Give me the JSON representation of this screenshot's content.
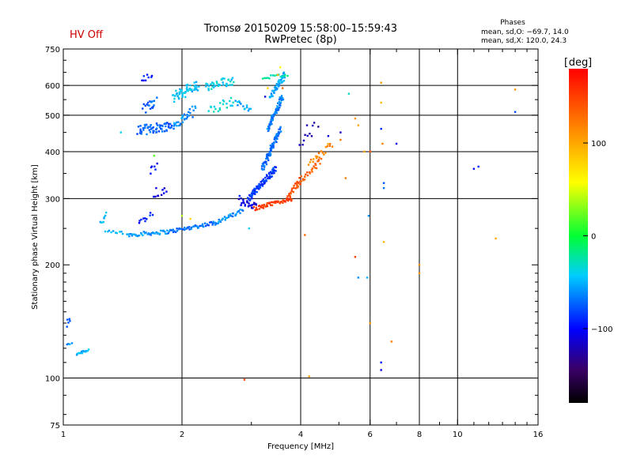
{
  "status": {
    "hv_text": "HV Off",
    "hv_color": "#cc0000"
  },
  "chart_data": {
    "type": "scatter",
    "title": "Tromsø 20150209 15:58:00–15:59:43",
    "subtitle": "RwPretec (8p)",
    "xlabel": "Frequency [MHz]",
    "ylabel": "Stationary phase Virtual Height [km]",
    "x_scale": "log",
    "y_scale": "log",
    "xlim": [
      1,
      16
    ],
    "ylim": [
      75,
      750
    ],
    "x_ticks": [
      1,
      2,
      4,
      6,
      8,
      10,
      16
    ],
    "x_grid": [
      2,
      4,
      6,
      8,
      10
    ],
    "y_ticks": [
      75,
      100,
      200,
      300,
      400,
      500,
      600,
      750
    ],
    "y_grid": [
      100,
      300,
      400,
      500,
      600
    ],
    "grid": true,
    "phase_box": {
      "title": "Phases",
      "line1": "mean, sd,O: −69.7, 14.0",
      "line2": "mean, sd,X: 120.0, 24.3"
    },
    "colorbar": {
      "unit_label": "deg",
      "range": [
        -180,
        180
      ],
      "ticks": [
        100,
        0,
        -100
      ],
      "tick_labels": [
        "100",
        "0",
        "−100"
      ]
    },
    "segments": [
      {
        "x0": 1.02,
        "x1": 1.04,
        "y0": 138,
        "y1": 145,
        "n": 6,
        "phase": -80,
        "spread": 0.02
      },
      {
        "x0": 1.02,
        "x1": 1.05,
        "y0": 122,
        "y1": 124,
        "n": 4,
        "phase": -60,
        "spread": 0.01
      },
      {
        "x0": 1.08,
        "x1": 1.16,
        "y0": 116,
        "y1": 119,
        "n": 14,
        "phase": -50,
        "spread": 0.01
      },
      {
        "x0": 1.24,
        "x1": 1.28,
        "y0": 258,
        "y1": 270,
        "n": 8,
        "phase": -45,
        "spread": 0.02
      },
      {
        "x0": 1.28,
        "x1": 1.42,
        "y0": 245,
        "y1": 243,
        "n": 10,
        "phase": -50,
        "spread": 0.01
      },
      {
        "x0": 1.45,
        "x1": 1.85,
        "y0": 240,
        "y1": 245,
        "n": 40,
        "phase": -60,
        "spread": 0.012
      },
      {
        "x0": 1.85,
        "x1": 2.4,
        "y0": 245,
        "y1": 258,
        "n": 45,
        "phase": -70,
        "spread": 0.012
      },
      {
        "x0": 2.4,
        "x1": 2.85,
        "y0": 258,
        "y1": 278,
        "n": 35,
        "phase": -60,
        "spread": 0.014
      },
      {
        "x0": 1.55,
        "x1": 1.68,
        "y0": 262,
        "y1": 272,
        "n": 10,
        "phase": -90,
        "spread": 0.02
      },
      {
        "x0": 1.7,
        "x1": 1.82,
        "y0": 300,
        "y1": 318,
        "n": 8,
        "phase": -110,
        "spread": 0.02
      },
      {
        "x0": 1.66,
        "x1": 1.72,
        "y0": 355,
        "y1": 368,
        "n": 6,
        "phase": -100,
        "spread": 0.02
      },
      {
        "x0": 1.55,
        "x1": 1.9,
        "y0": 455,
        "y1": 470,
        "n": 60,
        "phase": -75,
        "spread": 0.03
      },
      {
        "x0": 1.6,
        "x1": 1.72,
        "y0": 520,
        "y1": 545,
        "n": 18,
        "phase": -70,
        "spread": 0.03
      },
      {
        "x0": 1.58,
        "x1": 1.68,
        "y0": 625,
        "y1": 635,
        "n": 8,
        "phase": -95,
        "spread": 0.02
      },
      {
        "x0": 1.92,
        "x1": 2.15,
        "y0": 470,
        "y1": 515,
        "n": 30,
        "phase": -60,
        "spread": 0.03
      },
      {
        "x0": 1.9,
        "x1": 2.2,
        "y0": 560,
        "y1": 600,
        "n": 50,
        "phase": -45,
        "spread": 0.035
      },
      {
        "x0": 2.3,
        "x1": 2.7,
        "y0": 590,
        "y1": 620,
        "n": 40,
        "phase": -40,
        "spread": 0.03
      },
      {
        "x0": 2.35,
        "x1": 2.7,
        "y0": 520,
        "y1": 545,
        "n": 20,
        "phase": -35,
        "spread": 0.03
      },
      {
        "x0": 2.75,
        "x1": 3.0,
        "y0": 540,
        "y1": 520,
        "n": 15,
        "phase": -50,
        "spread": 0.02
      },
      {
        "x0": 2.8,
        "x1": 3.1,
        "y0": 295,
        "y1": 285,
        "n": 25,
        "phase": -110,
        "spread": 0.02
      },
      {
        "x0": 2.95,
        "x1": 3.45,
        "y0": 300,
        "y1": 360,
        "n": 90,
        "phase": -85,
        "spread": 0.02
      },
      {
        "x0": 3.2,
        "x1": 3.55,
        "y0": 360,
        "y1": 460,
        "n": 80,
        "phase": -70,
        "spread": 0.02
      },
      {
        "x0": 3.3,
        "x1": 3.6,
        "y0": 460,
        "y1": 560,
        "n": 70,
        "phase": -65,
        "spread": 0.02
      },
      {
        "x0": 3.35,
        "x1": 3.65,
        "y0": 560,
        "y1": 640,
        "n": 50,
        "phase": -55,
        "spread": 0.02
      },
      {
        "x0": 3.2,
        "x1": 3.7,
        "y0": 628,
        "y1": 642,
        "n": 15,
        "phase": -20,
        "spread": 0.01
      },
      {
        "x0": 3.05,
        "x1": 3.8,
        "y0": 282,
        "y1": 300,
        "n": 55,
        "phase": 150,
        "spread": 0.012
      },
      {
        "x0": 3.7,
        "x1": 4.0,
        "y0": 300,
        "y1": 340,
        "n": 25,
        "phase": 145,
        "spread": 0.015
      },
      {
        "x0": 3.9,
        "x1": 4.5,
        "y0": 320,
        "y1": 380,
        "n": 30,
        "phase": 135,
        "spread": 0.02
      },
      {
        "x0": 4.2,
        "x1": 4.8,
        "y0": 370,
        "y1": 420,
        "n": 20,
        "phase": 115,
        "spread": 0.02
      },
      {
        "x0": 4.0,
        "x1": 4.4,
        "y0": 420,
        "y1": 470,
        "n": 10,
        "phase": -120,
        "spread": 0.03
      }
    ],
    "points": [
      {
        "x": 5.3,
        "y": 570,
        "phase": -30
      },
      {
        "x": 5.5,
        "y": 490,
        "phase": 110
      },
      {
        "x": 5.6,
        "y": 470,
        "phase": 100
      },
      {
        "x": 5.2,
        "y": 340,
        "phase": 120
      },
      {
        "x": 5.5,
        "y": 210,
        "phase": 150
      },
      {
        "x": 5.6,
        "y": 185,
        "phase": -60
      },
      {
        "x": 5.8,
        "y": 400,
        "phase": 100
      },
      {
        "x": 5.9,
        "y": 185,
        "phase": -50
      },
      {
        "x": 5.95,
        "y": 270,
        "phase": -60
      },
      {
        "x": 6.0,
        "y": 140,
        "phase": 110
      },
      {
        "x": 6.0,
        "y": 400,
        "phase": 140
      },
      {
        "x": 6.4,
        "y": 610,
        "phase": 105
      },
      {
        "x": 6.4,
        "y": 540,
        "phase": 90
      },
      {
        "x": 6.4,
        "y": 460,
        "phase": -90
      },
      {
        "x": 6.45,
        "y": 420,
        "phase": 120
      },
      {
        "x": 6.5,
        "y": 330,
        "phase": -80
      },
      {
        "x": 6.5,
        "y": 320,
        "phase": -70
      },
      {
        "x": 6.5,
        "y": 230,
        "phase": 95
      },
      {
        "x": 6.4,
        "y": 110,
        "phase": -100
      },
      {
        "x": 6.4,
        "y": 105,
        "phase": -110
      },
      {
        "x": 6.8,
        "y": 125,
        "phase": 120
      },
      {
        "x": 7.0,
        "y": 420,
        "phase": -110
      },
      {
        "x": 8.0,
        "y": 200,
        "phase": 110
      },
      {
        "x": 8.0,
        "y": 190,
        "phase": 105
      },
      {
        "x": 11.0,
        "y": 360,
        "phase": -100
      },
      {
        "x": 11.3,
        "y": 365,
        "phase": -90
      },
      {
        "x": 12.5,
        "y": 235,
        "phase": 100
      },
      {
        "x": 14.0,
        "y": 585,
        "phase": 110
      },
      {
        "x": 14.0,
        "y": 510,
        "phase": -80
      },
      {
        "x": 4.1,
        "y": 240,
        "phase": 130
      },
      {
        "x": 4.15,
        "y": 470,
        "phase": -120
      },
      {
        "x": 4.2,
        "y": 101,
        "phase": 105
      },
      {
        "x": 4.7,
        "y": 440,
        "phase": -110
      },
      {
        "x": 5.05,
        "y": 450,
        "phase": -115
      },
      {
        "x": 5.05,
        "y": 430,
        "phase": 125
      },
      {
        "x": 2.88,
        "y": 99,
        "phase": 150
      },
      {
        "x": 2.8,
        "y": 305,
        "phase": -90
      },
      {
        "x": 2.96,
        "y": 250,
        "phase": -40
      },
      {
        "x": 1.8,
        "y": 310,
        "phase": -100
      },
      {
        "x": 1.72,
        "y": 320,
        "phase": -110
      },
      {
        "x": 1.4,
        "y": 450,
        "phase": -40
      },
      {
        "x": 1.7,
        "y": 390,
        "phase": 20
      },
      {
        "x": 2.0,
        "y": 270,
        "phase": 40
      },
      {
        "x": 2.1,
        "y": 265,
        "phase": 80
      },
      {
        "x": 3.3,
        "y": 590,
        "phase": 80
      },
      {
        "x": 3.5,
        "y": 640,
        "phase": 95
      },
      {
        "x": 3.6,
        "y": 590,
        "phase": 130
      },
      {
        "x": 3.55,
        "y": 670,
        "phase": 60
      },
      {
        "x": 3.25,
        "y": 560,
        "phase": -110
      }
    ]
  }
}
